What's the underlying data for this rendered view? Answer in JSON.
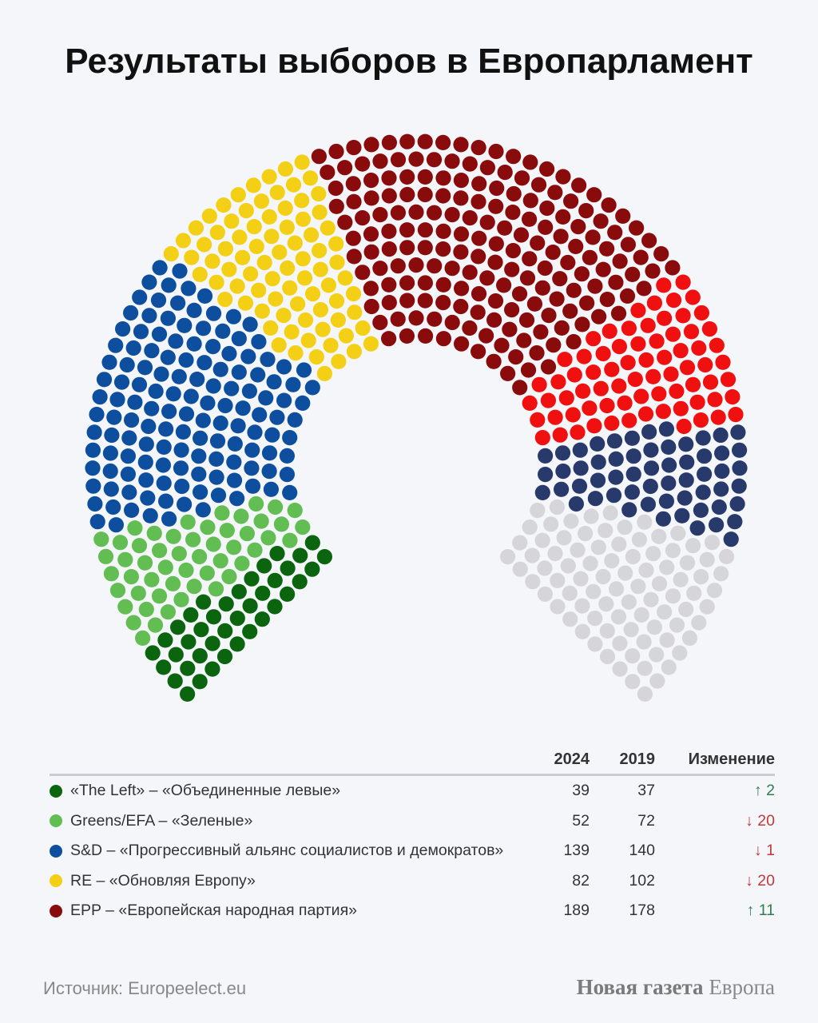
{
  "title": "Результаты выборов в Европарламент",
  "chart_data": {
    "type": "parliament",
    "title": "Результаты выборов в Европарламент",
    "total_seats": 720,
    "segments": [
      {
        "name": "«The Left» – «Объединенные левые»",
        "seats": 39,
        "color": "#0b650e"
      },
      {
        "name": "Greens/EFA – «Зеленые»",
        "seats": 52,
        "color": "#62bd52"
      },
      {
        "name": "S&D – «Прогрессивный альянс социалистов и демократов»",
        "seats": 139,
        "color": "#0d4f9e"
      },
      {
        "name": "RE – «Обновляя Европу»",
        "seats": 82,
        "color": "#f3d016"
      },
      {
        "name": "EPP – «Европейская народная партия»",
        "seats": 189,
        "color": "#8a0b0b"
      },
      {
        "name": "",
        "seats": 73,
        "color": "#f01010"
      },
      {
        "name": "",
        "seats": 58,
        "color": "#283a6b"
      },
      {
        "name": "",
        "seats": 88,
        "color": "#d6d6da"
      }
    ]
  },
  "table": {
    "headers": {
      "y2024": "2024",
      "y2019": "2019",
      "change": "Изменение"
    },
    "rows": [
      {
        "name": "«The Left» – «Объединенные левые»",
        "y2024": "39",
        "y2019": "37",
        "arrow": "↑",
        "change": "2",
        "dir": "up",
        "color": "#0b650e"
      },
      {
        "name": "Greens/EFA – «Зеленые»",
        "y2024": "52",
        "y2019": "72",
        "arrow": "↓",
        "change": "20",
        "dir": "down",
        "color": "#62bd52"
      },
      {
        "name": "S&D – «Прогрессивный альянс социалистов и демократов»",
        "y2024": "139",
        "y2019": "140",
        "arrow": "↓",
        "change": "1",
        "dir": "down",
        "color": "#0d4f9e"
      },
      {
        "name": "RE – «Обновляя Европу»",
        "y2024": "82",
        "y2019": "102",
        "arrow": "↓",
        "change": "20",
        "dir": "down",
        "color": "#f3d016"
      },
      {
        "name": "EPP – «Европейская народная партия»",
        "y2024": "189",
        "y2019": "178",
        "arrow": "↑",
        "change": "11",
        "dir": "up",
        "color": "#8a0b0b"
      }
    ]
  },
  "footer": {
    "source": "Источник: Europeelect.eu",
    "brand_bold": "Новая газета",
    "brand_rest": "Европа"
  }
}
